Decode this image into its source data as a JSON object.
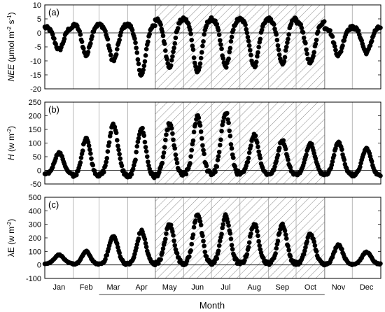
{
  "chart_data": [
    {
      "type": "scatter",
      "panel_label": "(a)",
      "ylabel_html": [
        "NEE",
        " (μmol m",
        "-2",
        " s",
        "-1",
        ")"
      ],
      "ylim": [
        -20,
        10
      ],
      "yticks": [
        -20,
        -15,
        -10,
        -5,
        0,
        5,
        10
      ],
      "categories": [
        "Jan",
        "Feb",
        "Mar",
        "Apr",
        "May",
        "Jun",
        "Jul",
        "Aug",
        "Sep",
        "Oct",
        "Nov",
        "Dec"
      ],
      "shaded_months": [
        "May",
        "Jun",
        "Jul",
        "Aug",
        "Sep",
        "Oct"
      ],
      "series": [
        {
          "daily_peak_per_event": [
            -6,
            -8,
            -10,
            -15,
            -12,
            -14,
            -12,
            -12,
            -11,
            -11,
            -8,
            -7
          ],
          "daytime_positive_level": [
            2,
            3,
            3,
            3,
            5,
            5,
            5,
            5,
            5,
            4,
            2,
            2
          ]
        }
      ]
    },
    {
      "type": "scatter",
      "panel_label": "(b)",
      "ylabel_html": [
        "H",
        " (w m",
        "-2",
        ")"
      ],
      "ylim": [
        -50,
        250
      ],
      "yticks": [
        -50,
        0,
        50,
        100,
        150,
        200,
        250
      ],
      "categories": [
        "Jan",
        "Feb",
        "Mar",
        "Apr",
        "May",
        "Jun",
        "Jul",
        "Aug",
        "Sep",
        "Oct",
        "Nov",
        "Dec"
      ],
      "shaded_months": [
        "May",
        "Jun",
        "Jul",
        "Aug",
        "Sep",
        "Oct"
      ],
      "series": [
        {
          "peak_per_event": [
            65,
            120,
            170,
            155,
            170,
            200,
            215,
            130,
            110,
            100,
            105,
            80
          ],
          "night_minimum": [
            -15,
            -20,
            -20,
            -25,
            -20,
            -15,
            -15,
            -15,
            -15,
            -15,
            -15,
            -20
          ]
        }
      ]
    },
    {
      "type": "scatter",
      "panel_label": "(c)",
      "ylabel_html": [
        "λE",
        " (w m",
        "-2",
        ")"
      ],
      "ylim": [
        -100,
        500
      ],
      "yticks": [
        -100,
        0,
        100,
        200,
        300,
        400,
        500
      ],
      "categories": [
        "Jan",
        "Feb",
        "Mar",
        "Apr",
        "May",
        "Jun",
        "Jul",
        "Aug",
        "Sep",
        "Oct",
        "Nov",
        "Dec"
      ],
      "shaded_months": [
        "May",
        "Jun",
        "Jul",
        "Aug",
        "Sep",
        "Oct"
      ],
      "series": [
        {
          "peak_per_event": [
            75,
            100,
            210,
            250,
            300,
            380,
            360,
            300,
            300,
            230,
            150,
            95
          ],
          "night_minimum": [
            10,
            5,
            5,
            5,
            10,
            10,
            10,
            10,
            10,
            5,
            5,
            5
          ]
        }
      ]
    }
  ],
  "xlabel": "Month"
}
